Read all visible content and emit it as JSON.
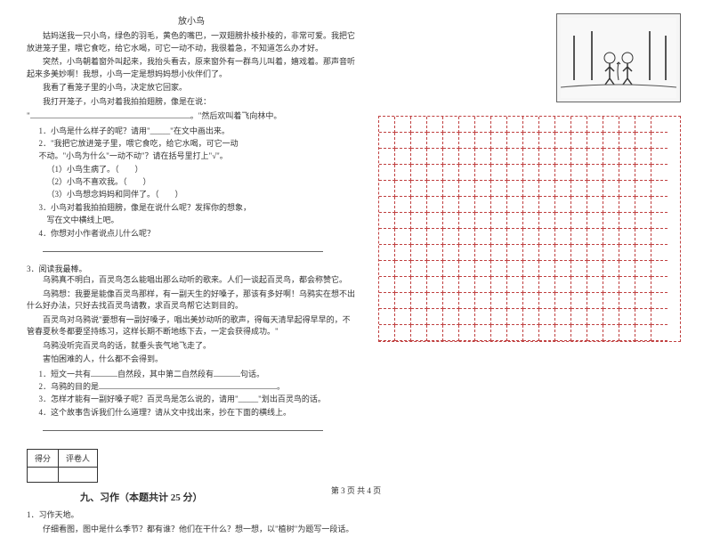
{
  "passage1": {
    "title": "放小鸟",
    "p1": "姑妈送我一只小鸟，绿色的羽毛，黄色的嘴巴，一双翅膀扑棱扑棱的，非常可爱。我把它放进笼子里，喂它食吃，给它水喝，可它一动不动，我很着急，不知道怎么办才好。",
    "p2": "突然，小鸟朝着窗外叫起来，我抬头看去，原来窗外有一群鸟儿叫着，嬉戏着。那声音听起来多美妙啊！我想，小鸟一定是想妈妈想小伙伴们了。",
    "p3": "我看了看笼子里的小鸟，决定放它回家。",
    "p4": "我打开笼子，小鸟对着我拍拍翅膀，像是在说：",
    "p5_suffix": "。\"然后欢叫着飞向林中。",
    "q1": "1．小鸟是什么样子的呢？请用\"_____\"在文中画出来。",
    "q2": "2．\"我把它放进笼子里，喂它食吃，给它水喝，可它一动",
    "q2b": "不动。\"小鸟为什么\"一动不动\"？请在括号里打上\"√\"。",
    "q2_opt1": "（1）小鸟生病了。（　　）",
    "q2_opt2": "（2）小鸟不喜欢我。（　　）",
    "q2_opt3": "（3）小鸟想念妈妈和同伴了。（　　）",
    "q3": "3．小鸟对着我拍拍翅膀，像是在说什么呢？发挥你的想象，",
    "q3b": "写在文中横线上吧。",
    "q4": "4．你想对小作者说点儿什么呢？"
  },
  "passage2": {
    "intro": "3．阅读我最棒。",
    "p1": "乌鸦真不明白，百灵鸟怎么能唱出那么动听的歌来。人们一谈起百灵鸟，都会称赞它。",
    "p2": "乌鸦想：我要是能像百灵鸟那样，有一副天生的好嗓子，那该有多好啊！乌鸦实在想不出什么好办法，只好去找百灵鸟请教，求百灵鸟帮它达到目的。",
    "p3": "百灵鸟对乌鸦说\"要想有一副好嗓子，唱出美妙动听的歌声，得每天清早起得早早的，不管春夏秋冬都要坚持练习，这样长期不断地练下去，一定会获得成功。\"",
    "p4": "乌鸦没听完百灵鸟的话，就垂头丧气地飞走了。",
    "p5": "害怕困难的人，什么都不会得到。",
    "q1_a": "1．短文一共有",
    "q1_b": "自然段，其中第二自然段有",
    "q1_c": "句话。",
    "q2": "2．乌鸦的目的是",
    "q3": "3．怎样才能有一副好嗓子呢？百灵鸟是怎么说的，请用\"_____\"划出百灵鸟的话。",
    "q4": "4．这个故事告诉我们什么道理？请从文中找出来，抄在下面的横线上。"
  },
  "section9": {
    "score_label1": "得分",
    "score_label2": "评卷人",
    "title": "九、习作（本题共计 25 分）",
    "q1": "1．习作天地。",
    "q1_text": "仔细看图，图中是什么季节？都有谁？他们在干什么？想一想，以\"植树\"为题写一段话。"
  },
  "footer": "第 3 页  共 4 页",
  "grid": {
    "rows": 14,
    "cols": 18
  }
}
